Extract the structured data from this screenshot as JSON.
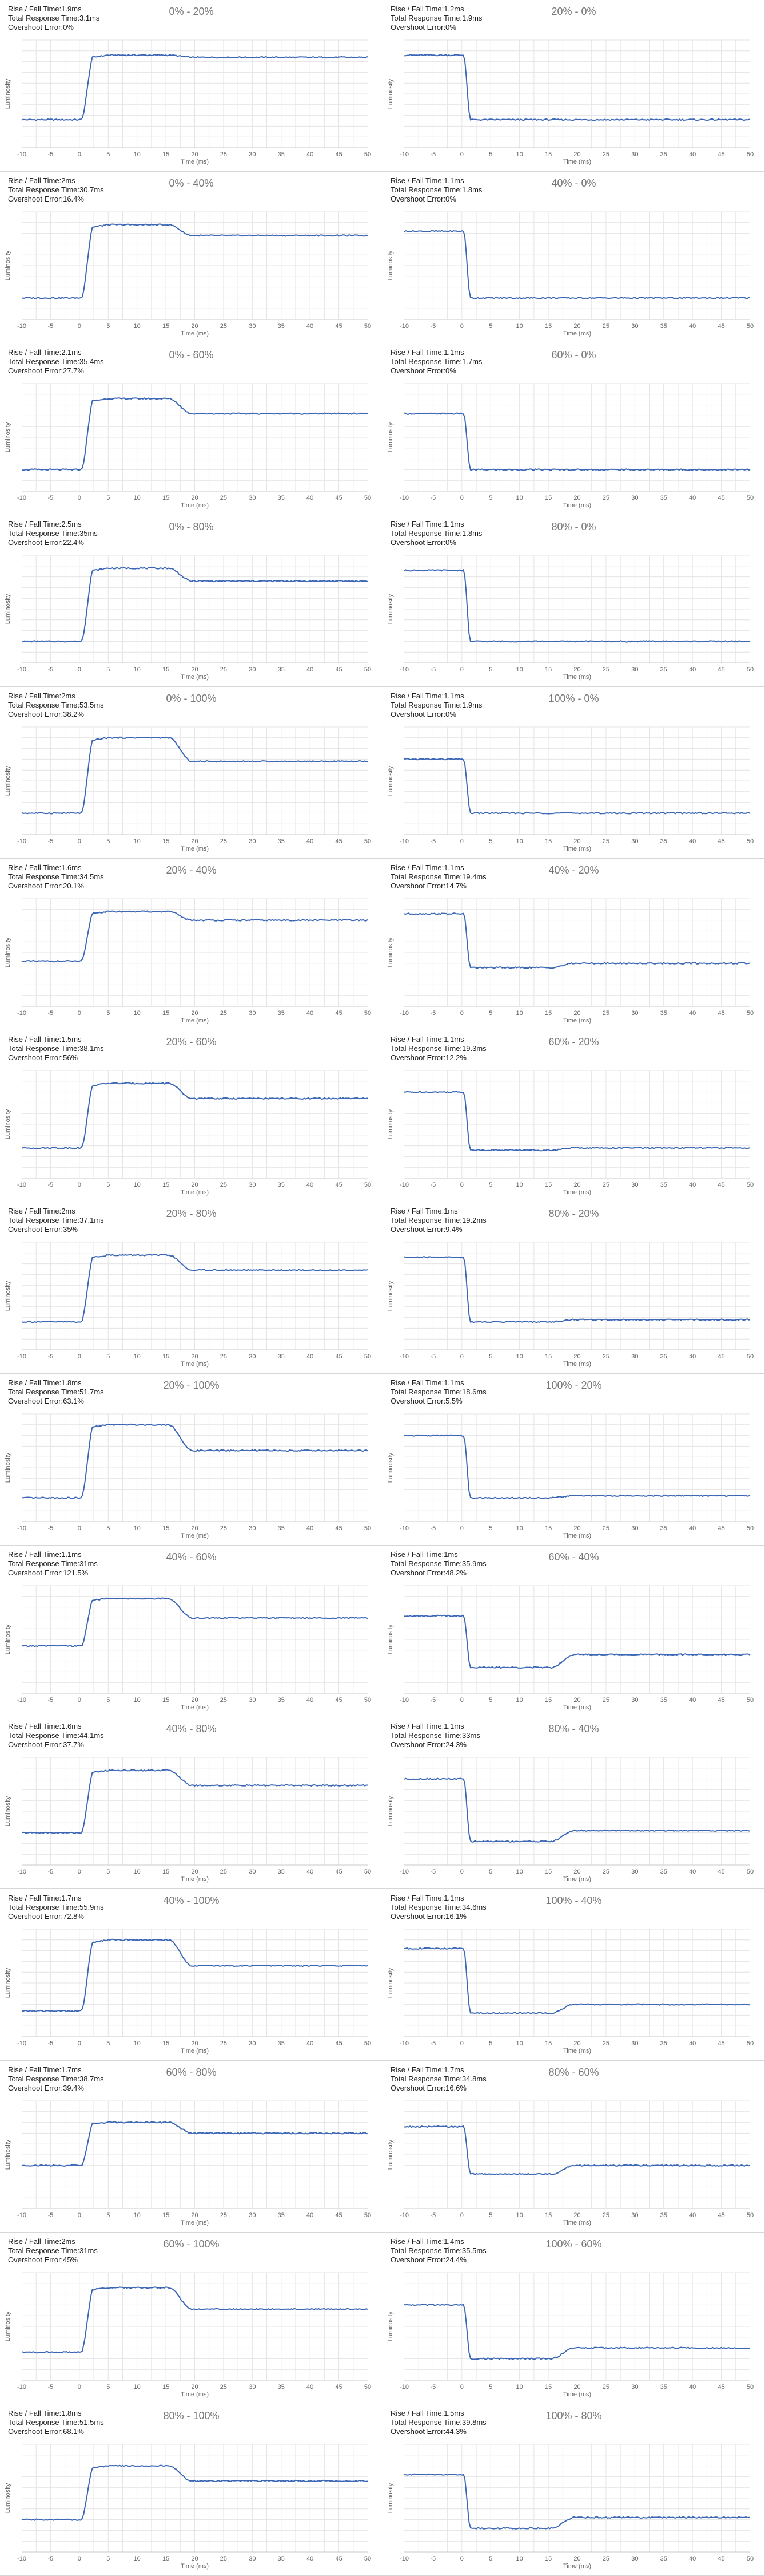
{
  "axis": {
    "xlabel": "Time (ms)",
    "ylabel": "Luminosity",
    "xticks": [
      -10,
      -5,
      0,
      5,
      10,
      15,
      20,
      25,
      30,
      35,
      40,
      45,
      50
    ],
    "xlim": [
      -10,
      50
    ]
  },
  "stat_labels": {
    "rise_fall": "Rise / Fall Time:",
    "total": "Total Response Time:",
    "overshoot": "Overshoot Error:"
  },
  "colors": {
    "trace": "#3a66b5",
    "grid": "#e4e4e4",
    "title": "#777777"
  },
  "chart_data": [
    {
      "type": "line",
      "title": "0% - 20%",
      "rise_fall": "1.9ms",
      "total": "3.1ms",
      "overshoot": "0%",
      "kind": "up",
      "from": 0.26,
      "peak": 0.86,
      "settle": 0.84
    },
    {
      "type": "line",
      "title": "20% - 0%",
      "rise_fall": "1.2ms",
      "total": "1.9ms",
      "overshoot": "0%",
      "kind": "down",
      "from": 0.86,
      "peak": 0.26,
      "settle": 0.26
    },
    {
      "type": "line",
      "title": "0% - 40%",
      "rise_fall": "2ms",
      "total": "30.7ms",
      "overshoot": "16.4%",
      "kind": "up",
      "from": 0.2,
      "peak": 0.88,
      "settle": 0.78
    },
    {
      "type": "line",
      "title": "40% - 0%",
      "rise_fall": "1.1ms",
      "total": "1.8ms",
      "overshoot": "0%",
      "kind": "down",
      "from": 0.82,
      "peak": 0.2,
      "settle": 0.2
    },
    {
      "type": "line",
      "title": "0% - 60%",
      "rise_fall": "2.1ms",
      "total": "35.4ms",
      "overshoot": "27.7%",
      "kind": "up",
      "from": 0.2,
      "peak": 0.86,
      "settle": 0.72
    },
    {
      "type": "line",
      "title": "60% - 0%",
      "rise_fall": "1.1ms",
      "total": "1.7ms",
      "overshoot": "0%",
      "kind": "down",
      "from": 0.72,
      "peak": 0.2,
      "settle": 0.2
    },
    {
      "type": "line",
      "title": "0% - 80%",
      "rise_fall": "2.5ms",
      "total": "35ms",
      "overshoot": "22.4%",
      "kind": "up",
      "from": 0.2,
      "peak": 0.88,
      "settle": 0.76
    },
    {
      "type": "line",
      "title": "80% - 0%",
      "rise_fall": "1.1ms",
      "total": "1.8ms",
      "overshoot": "0%",
      "kind": "down",
      "from": 0.86,
      "peak": 0.2,
      "settle": 0.2
    },
    {
      "type": "line",
      "title": "0% - 100%",
      "rise_fall": "2ms",
      "total": "53.5ms",
      "overshoot": "38.2%",
      "kind": "up",
      "from": 0.2,
      "peak": 0.9,
      "settle": 0.68
    },
    {
      "type": "line",
      "title": "100% - 0%",
      "rise_fall": "1.1ms",
      "total": "1.9ms",
      "overshoot": "0%",
      "kind": "down",
      "from": 0.7,
      "peak": 0.2,
      "settle": 0.2
    },
    {
      "type": "line",
      "title": "20% - 40%",
      "rise_fall": "1.6ms",
      "total": "34.5ms",
      "overshoot": "20.1%",
      "kind": "up",
      "from": 0.42,
      "peak": 0.88,
      "settle": 0.8
    },
    {
      "type": "line",
      "title": "40% - 20%",
      "rise_fall": "1.1ms",
      "total": "19.4ms",
      "overshoot": "14.7%",
      "kind": "down",
      "from": 0.86,
      "peak": 0.36,
      "settle": 0.4
    },
    {
      "type": "line",
      "title": "20% - 60%",
      "rise_fall": "1.5ms",
      "total": "38.1ms",
      "overshoot": "56%",
      "kind": "up",
      "from": 0.28,
      "peak": 0.88,
      "settle": 0.74
    },
    {
      "type": "line",
      "title": "60% - 20%",
      "rise_fall": "1.1ms",
      "total": "19.3ms",
      "overshoot": "12.2%",
      "kind": "down",
      "from": 0.8,
      "peak": 0.26,
      "settle": 0.28
    },
    {
      "type": "line",
      "title": "20% - 80%",
      "rise_fall": "2ms",
      "total": "37.1ms",
      "overshoot": "35%",
      "kind": "up",
      "from": 0.26,
      "peak": 0.88,
      "settle": 0.74
    },
    {
      "type": "line",
      "title": "80% - 20%",
      "rise_fall": "1ms",
      "total": "19.2ms",
      "overshoot": "9.4%",
      "kind": "down",
      "from": 0.86,
      "peak": 0.26,
      "settle": 0.28
    },
    {
      "type": "line",
      "title": "20% - 100%",
      "rise_fall": "1.8ms",
      "total": "51.7ms",
      "overshoot": "63.1%",
      "kind": "up",
      "from": 0.22,
      "peak": 0.9,
      "settle": 0.66
    },
    {
      "type": "line",
      "title": "100% - 20%",
      "rise_fall": "1.1ms",
      "total": "18.6ms",
      "overshoot": "5.5%",
      "kind": "down",
      "from": 0.8,
      "peak": 0.22,
      "settle": 0.24
    },
    {
      "type": "line",
      "title": "40% - 60%",
      "rise_fall": "1.1ms",
      "total": "31ms",
      "overshoot": "121.5%",
      "kind": "up",
      "from": 0.44,
      "peak": 0.88,
      "settle": 0.7
    },
    {
      "type": "line",
      "title": "60% - 40%",
      "rise_fall": "1ms",
      "total": "35.9ms",
      "overshoot": "48.2%",
      "kind": "down",
      "from": 0.72,
      "peak": 0.24,
      "settle": 0.36
    },
    {
      "type": "line",
      "title": "40% - 80%",
      "rise_fall": "1.6ms",
      "total": "44.1ms",
      "overshoot": "37.7%",
      "kind": "up",
      "from": 0.3,
      "peak": 0.88,
      "settle": 0.74
    },
    {
      "type": "line",
      "title": "80% - 40%",
      "rise_fall": "1.1ms",
      "total": "33ms",
      "overshoot": "24.3%",
      "kind": "down",
      "from": 0.8,
      "peak": 0.22,
      "settle": 0.32
    },
    {
      "type": "line",
      "title": "40% - 100%",
      "rise_fall": "1.7ms",
      "total": "55.9ms",
      "overshoot": "72.8%",
      "kind": "up",
      "from": 0.24,
      "peak": 0.9,
      "settle": 0.66
    },
    {
      "type": "line",
      "title": "100% - 40%",
      "rise_fall": "1.1ms",
      "total": "34.6ms",
      "overshoot": "16.1%",
      "kind": "down",
      "from": 0.82,
      "peak": 0.22,
      "settle": 0.3
    },
    {
      "type": "line",
      "title": "60% - 80%",
      "rise_fall": "1.7ms",
      "total": "38.7ms",
      "overshoot": "39.4%",
      "kind": "up",
      "from": 0.4,
      "peak": 0.8,
      "settle": 0.7
    },
    {
      "type": "line",
      "title": "80% - 60%",
      "rise_fall": "1.7ms",
      "total": "34.8ms",
      "overshoot": "16.6%",
      "kind": "down",
      "from": 0.76,
      "peak": 0.32,
      "settle": 0.4
    },
    {
      "type": "line",
      "title": "60% - 100%",
      "rise_fall": "2ms",
      "total": "31ms",
      "overshoot": "45%",
      "kind": "up",
      "from": 0.26,
      "peak": 0.86,
      "settle": 0.66
    },
    {
      "type": "line",
      "title": "100% - 60%",
      "rise_fall": "1.4ms",
      "total": "35.5ms",
      "overshoot": "24.4%",
      "kind": "down",
      "from": 0.7,
      "peak": 0.2,
      "settle": 0.3
    },
    {
      "type": "line",
      "title": "80% - 100%",
      "rise_fall": "1.8ms",
      "total": "51.5ms",
      "overshoot": "68.1%",
      "kind": "up",
      "from": 0.3,
      "peak": 0.8,
      "settle": 0.66
    },
    {
      "type": "line",
      "title": "100% - 80%",
      "rise_fall": "1.5ms",
      "total": "39.8ms",
      "overshoot": "44.3%",
      "kind": "down",
      "from": 0.72,
      "peak": 0.22,
      "settle": 0.32
    }
  ]
}
